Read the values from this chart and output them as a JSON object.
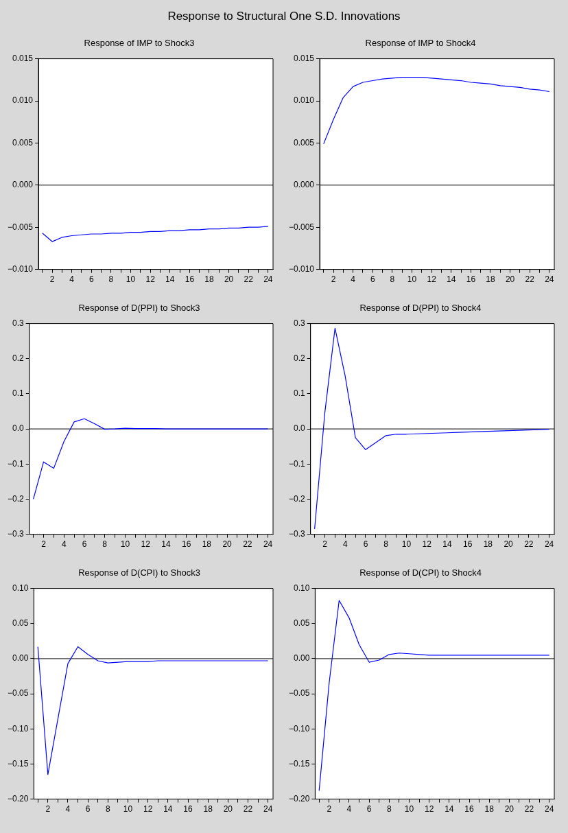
{
  "chart_data": [
    {
      "type": "line",
      "title": "Response of IMP to Shock3",
      "annotations": [
        "Response to Structural One S.D. Innovations"
      ],
      "x": [
        1,
        2,
        3,
        4,
        5,
        6,
        7,
        8,
        9,
        10,
        11,
        12,
        13,
        14,
        15,
        16,
        17,
        18,
        19,
        20,
        21,
        22,
        23,
        24
      ],
      "series": [
        {
          "color": "#0000ff",
          "values": [
            -0.0057,
            -0.0067,
            -0.0062,
            -0.006,
            -0.0059,
            -0.0058,
            -0.0058,
            -0.0057,
            -0.0057,
            -0.0056,
            -0.0056,
            -0.0055,
            -0.0055,
            -0.0054,
            -0.0054,
            -0.0053,
            -0.0053,
            -0.0052,
            -0.0052,
            -0.0051,
            -0.0051,
            -0.005,
            -0.005,
            -0.0049
          ]
        }
      ],
      "xlim": [
        0.6,
        24.5
      ],
      "xticks": [
        {
          "value": 1,
          "label": null
        },
        {
          "value": 2,
          "label": "2"
        },
        {
          "value": 3,
          "label": null
        },
        {
          "value": 4,
          "label": "4"
        },
        {
          "value": 5,
          "label": null
        },
        {
          "value": 6,
          "label": "6"
        },
        {
          "value": 7,
          "label": null
        },
        {
          "value": 8,
          "label": "8"
        },
        {
          "value": 9,
          "label": null
        },
        {
          "value": 10,
          "label": "10"
        },
        {
          "value": 11,
          "label": null
        },
        {
          "value": 12,
          "label": "12"
        },
        {
          "value": 13,
          "label": null
        },
        {
          "value": 14,
          "label": "14"
        },
        {
          "value": 15,
          "label": null
        },
        {
          "value": 16,
          "label": "16"
        },
        {
          "value": 17,
          "label": null
        },
        {
          "value": 18,
          "label": "18"
        },
        {
          "value": 19,
          "label": null
        },
        {
          "value": 20,
          "label": "20"
        },
        {
          "value": 21,
          "label": null
        },
        {
          "value": 22,
          "label": "22"
        },
        {
          "value": 23,
          "label": null
        },
        {
          "value": 24,
          "label": "24"
        }
      ],
      "ylim": [
        -0.01,
        0.015
      ],
      "yticks": [
        {
          "value": -0.01,
          "label": "−0.010"
        },
        {
          "value": -0.005,
          "label": "−0.005"
        },
        {
          "value": 0,
          "label": "0.000"
        },
        {
          "value": 0.005,
          "label": "0.005"
        },
        {
          "value": 0.01,
          "label": "0.010"
        },
        {
          "value": 0.015,
          "label": "0.015"
        }
      ],
      "ref_lines": [
        {
          "axis": "y",
          "value": 0,
          "color": "#000000"
        }
      ]
    },
    {
      "type": "line",
      "title": "Response of IMP to Shock4",
      "x": [
        1,
        2,
        3,
        4,
        5,
        6,
        7,
        8,
        9,
        10,
        11,
        12,
        13,
        14,
        15,
        16,
        17,
        18,
        19,
        20,
        21,
        22,
        23,
        24
      ],
      "series": [
        {
          "color": "#0000ff",
          "values": [
            0.0049,
            0.0078,
            0.0104,
            0.0117,
            0.0122,
            0.0124,
            0.0126,
            0.0127,
            0.0128,
            0.0128,
            0.0128,
            0.0127,
            0.0126,
            0.0125,
            0.0124,
            0.0122,
            0.0121,
            0.012,
            0.0118,
            0.0117,
            0.0116,
            0.0114,
            0.0113,
            0.0111
          ]
        }
      ],
      "xlim": [
        0.6,
        24.5
      ],
      "xticks": [
        {
          "value": 1,
          "label": null
        },
        {
          "value": 2,
          "label": "2"
        },
        {
          "value": 3,
          "label": null
        },
        {
          "value": 4,
          "label": "4"
        },
        {
          "value": 5,
          "label": null
        },
        {
          "value": 6,
          "label": "6"
        },
        {
          "value": 7,
          "label": null
        },
        {
          "value": 8,
          "label": "8"
        },
        {
          "value": 9,
          "label": null
        },
        {
          "value": 10,
          "label": "10"
        },
        {
          "value": 11,
          "label": null
        },
        {
          "value": 12,
          "label": "12"
        },
        {
          "value": 13,
          "label": null
        },
        {
          "value": 14,
          "label": "14"
        },
        {
          "value": 15,
          "label": null
        },
        {
          "value": 16,
          "label": "16"
        },
        {
          "value": 17,
          "label": null
        },
        {
          "value": 18,
          "label": "18"
        },
        {
          "value": 19,
          "label": null
        },
        {
          "value": 20,
          "label": "20"
        },
        {
          "value": 21,
          "label": null
        },
        {
          "value": 22,
          "label": "22"
        },
        {
          "value": 23,
          "label": null
        },
        {
          "value": 24,
          "label": "24"
        }
      ],
      "ylim": [
        -0.01,
        0.015
      ],
      "yticks": [
        {
          "value": -0.01,
          "label": "−0.010"
        },
        {
          "value": -0.005,
          "label": "−0.005"
        },
        {
          "value": 0,
          "label": "0.000"
        },
        {
          "value": 0.005,
          "label": "0.005"
        },
        {
          "value": 0.01,
          "label": "0.010"
        },
        {
          "value": 0.015,
          "label": "0.015"
        }
      ],
      "ref_lines": [
        {
          "axis": "y",
          "value": 0,
          "color": "#000000"
        }
      ]
    },
    {
      "type": "line",
      "title": "Response of D(PPI) to Shock3",
      "x": [
        1,
        2,
        3,
        4,
        5,
        6,
        7,
        8,
        9,
        10,
        11,
        12,
        13,
        14,
        15,
        16,
        17,
        18,
        19,
        20,
        21,
        22,
        23,
        24
      ],
      "series": [
        {
          "color": "#0000ff",
          "values": [
            -0.2,
            -0.094,
            -0.112,
            -0.036,
            0.02,
            0.029,
            0.015,
            -0.001,
            0,
            0.002,
            0.001,
            0.001,
            0.001,
            0,
            0,
            0,
            0,
            0,
            0,
            0,
            0,
            0,
            0,
            0
          ]
        }
      ],
      "xlim": [
        0.6,
        24.5
      ],
      "xticks": [
        {
          "value": 1,
          "label": null
        },
        {
          "value": 2,
          "label": "2"
        },
        {
          "value": 3,
          "label": null
        },
        {
          "value": 4,
          "label": "4"
        },
        {
          "value": 5,
          "label": null
        },
        {
          "value": 6,
          "label": "6"
        },
        {
          "value": 7,
          "label": null
        },
        {
          "value": 8,
          "label": "8"
        },
        {
          "value": 9,
          "label": null
        },
        {
          "value": 10,
          "label": "10"
        },
        {
          "value": 11,
          "label": null
        },
        {
          "value": 12,
          "label": "12"
        },
        {
          "value": 13,
          "label": null
        },
        {
          "value": 14,
          "label": "14"
        },
        {
          "value": 15,
          "label": null
        },
        {
          "value": 16,
          "label": "16"
        },
        {
          "value": 17,
          "label": null
        },
        {
          "value": 18,
          "label": "18"
        },
        {
          "value": 19,
          "label": null
        },
        {
          "value": 20,
          "label": "20"
        },
        {
          "value": 21,
          "label": null
        },
        {
          "value": 22,
          "label": "22"
        },
        {
          "value": 23,
          "label": null
        },
        {
          "value": 24,
          "label": "24"
        }
      ],
      "ylim": [
        -0.3,
        0.3
      ],
      "yticks": [
        {
          "value": -0.3,
          "label": "−0.3"
        },
        {
          "value": -0.2,
          "label": "−0.2"
        },
        {
          "value": -0.1,
          "label": "−0.1"
        },
        {
          "value": 0,
          "label": "0.0"
        },
        {
          "value": 0.1,
          "label": "0.1"
        },
        {
          "value": 0.2,
          "label": "0.2"
        },
        {
          "value": 0.3,
          "label": "0.3"
        }
      ],
      "ref_lines": [
        {
          "axis": "y",
          "value": 0,
          "color": "#000000"
        }
      ]
    },
    {
      "type": "line",
      "title": "Response of D(PPI) to Shock4",
      "x": [
        1,
        2,
        3,
        4,
        5,
        6,
        7,
        8,
        9,
        10,
        11,
        12,
        13,
        14,
        15,
        16,
        17,
        18,
        19,
        20,
        21,
        22,
        23,
        24
      ],
      "series": [
        {
          "color": "#0000ff",
          "values": [
            -0.285,
            0.046,
            0.287,
            0.15,
            -0.025,
            -0.059,
            -0.039,
            -0.019,
            -0.015,
            -0.015,
            -0.014,
            -0.013,
            -0.012,
            -0.011,
            -0.01,
            -0.009,
            -0.008,
            -0.007,
            -0.006,
            -0.005,
            -0.004,
            -0.003,
            -0.002,
            -0.001
          ]
        }
      ],
      "xlim": [
        0.6,
        24.5
      ],
      "xticks": [
        {
          "value": 1,
          "label": null
        },
        {
          "value": 2,
          "label": "2"
        },
        {
          "value": 3,
          "label": null
        },
        {
          "value": 4,
          "label": "4"
        },
        {
          "value": 5,
          "label": null
        },
        {
          "value": 6,
          "label": "6"
        },
        {
          "value": 7,
          "label": null
        },
        {
          "value": 8,
          "label": "8"
        },
        {
          "value": 9,
          "label": null
        },
        {
          "value": 10,
          "label": "10"
        },
        {
          "value": 11,
          "label": null
        },
        {
          "value": 12,
          "label": "12"
        },
        {
          "value": 13,
          "label": null
        },
        {
          "value": 14,
          "label": "14"
        },
        {
          "value": 15,
          "label": null
        },
        {
          "value": 16,
          "label": "16"
        },
        {
          "value": 17,
          "label": null
        },
        {
          "value": 18,
          "label": "18"
        },
        {
          "value": 19,
          "label": null
        },
        {
          "value": 20,
          "label": "20"
        },
        {
          "value": 21,
          "label": null
        },
        {
          "value": 22,
          "label": "22"
        },
        {
          "value": 23,
          "label": null
        },
        {
          "value": 24,
          "label": "24"
        }
      ],
      "ylim": [
        -0.3,
        0.3
      ],
      "yticks": [
        {
          "value": -0.3,
          "label": "−0.3"
        },
        {
          "value": -0.2,
          "label": "−0.2"
        },
        {
          "value": -0.1,
          "label": "−0.1"
        },
        {
          "value": 0,
          "label": "0.0"
        },
        {
          "value": 0.1,
          "label": "0.1"
        },
        {
          "value": 0.2,
          "label": "0.2"
        },
        {
          "value": 0.3,
          "label": "0.3"
        }
      ],
      "ref_lines": [
        {
          "axis": "y",
          "value": 0,
          "color": "#000000"
        }
      ]
    },
    {
      "type": "line",
      "title": "Response of D(CPI) to Shock3",
      "x": [
        1,
        2,
        3,
        4,
        5,
        6,
        7,
        8,
        9,
        10,
        11,
        12,
        13,
        14,
        15,
        16,
        17,
        18,
        19,
        20,
        21,
        22,
        23,
        24
      ],
      "series": [
        {
          "color": "#0000ff",
          "values": [
            0.017,
            -0.165,
            -0.086,
            -0.007,
            0.017,
            0.006,
            -0.003,
            -0.006,
            -0.005,
            -0.004,
            -0.004,
            -0.004,
            -0.003,
            -0.003,
            -0.003,
            -0.003,
            -0.003,
            -0.003,
            -0.003,
            -0.003,
            -0.003,
            -0.003,
            -0.003,
            -0.003
          ]
        }
      ],
      "xlim": [
        0.6,
        24.5
      ],
      "xticks": [
        {
          "value": 1,
          "label": null
        },
        {
          "value": 2,
          "label": "2"
        },
        {
          "value": 3,
          "label": null
        },
        {
          "value": 4,
          "label": "4"
        },
        {
          "value": 5,
          "label": null
        },
        {
          "value": 6,
          "label": "6"
        },
        {
          "value": 7,
          "label": null
        },
        {
          "value": 8,
          "label": "8"
        },
        {
          "value": 9,
          "label": null
        },
        {
          "value": 10,
          "label": "10"
        },
        {
          "value": 11,
          "label": null
        },
        {
          "value": 12,
          "label": "12"
        },
        {
          "value": 13,
          "label": null
        },
        {
          "value": 14,
          "label": "14"
        },
        {
          "value": 15,
          "label": null
        },
        {
          "value": 16,
          "label": "16"
        },
        {
          "value": 17,
          "label": null
        },
        {
          "value": 18,
          "label": "18"
        },
        {
          "value": 19,
          "label": null
        },
        {
          "value": 20,
          "label": "20"
        },
        {
          "value": 21,
          "label": null
        },
        {
          "value": 22,
          "label": "22"
        },
        {
          "value": 23,
          "label": null
        },
        {
          "value": 24,
          "label": "24"
        }
      ],
      "ylim": [
        -0.2,
        0.1
      ],
      "yticks": [
        {
          "value": -0.2,
          "label": "−0.20"
        },
        {
          "value": -0.15,
          "label": "−0.15"
        },
        {
          "value": -0.1,
          "label": "−0.10"
        },
        {
          "value": -0.05,
          "label": "−0.05"
        },
        {
          "value": 0,
          "label": "0.00"
        },
        {
          "value": 0.05,
          "label": "0.05"
        },
        {
          "value": 0.1,
          "label": "0.10"
        }
      ],
      "ref_lines": [
        {
          "axis": "y",
          "value": 0,
          "color": "#000000"
        }
      ]
    },
    {
      "type": "line",
      "title": "Response of D(CPI) to Shock4",
      "x": [
        1,
        2,
        3,
        4,
        5,
        6,
        7,
        8,
        9,
        10,
        11,
        12,
        13,
        14,
        15,
        16,
        17,
        18,
        19,
        20,
        21,
        22,
        23,
        24
      ],
      "series": [
        {
          "color": "#0000ff",
          "values": [
            -0.188,
            -0.035,
            0.083,
            0.058,
            0.02,
            -0.005,
            -0.002,
            0.006,
            0.008,
            0.007,
            0.006,
            0.005,
            0.005,
            0.005,
            0.005,
            0.005,
            0.005,
            0.005,
            0.005,
            0.005,
            0.005,
            0.005,
            0.005,
            0.005
          ]
        }
      ],
      "xlim": [
        0.6,
        24.5
      ],
      "xticks": [
        {
          "value": 1,
          "label": null
        },
        {
          "value": 2,
          "label": "2"
        },
        {
          "value": 3,
          "label": null
        },
        {
          "value": 4,
          "label": "4"
        },
        {
          "value": 5,
          "label": null
        },
        {
          "value": 6,
          "label": "6"
        },
        {
          "value": 7,
          "label": null
        },
        {
          "value": 8,
          "label": "8"
        },
        {
          "value": 9,
          "label": null
        },
        {
          "value": 10,
          "label": "10"
        },
        {
          "value": 11,
          "label": null
        },
        {
          "value": 12,
          "label": "12"
        },
        {
          "value": 13,
          "label": null
        },
        {
          "value": 14,
          "label": "14"
        },
        {
          "value": 15,
          "label": null
        },
        {
          "value": 16,
          "label": "16"
        },
        {
          "value": 17,
          "label": null
        },
        {
          "value": 18,
          "label": "18"
        },
        {
          "value": 19,
          "label": null
        },
        {
          "value": 20,
          "label": "20"
        },
        {
          "value": 21,
          "label": null
        },
        {
          "value": 22,
          "label": "22"
        },
        {
          "value": 23,
          "label": null
        },
        {
          "value": 24,
          "label": "24"
        }
      ],
      "ylim": [
        -0.2,
        0.1
      ],
      "yticks": [
        {
          "value": -0.2,
          "label": "−0.20"
        },
        {
          "value": -0.15,
          "label": "−0.15"
        },
        {
          "value": -0.1,
          "label": "−0.10"
        },
        {
          "value": -0.05,
          "label": "−0.05"
        },
        {
          "value": 0,
          "label": "0.00"
        },
        {
          "value": 0.05,
          "label": "0.05"
        },
        {
          "value": 0.1,
          "label": "0.10"
        }
      ],
      "ref_lines": [
        {
          "axis": "y",
          "value": 0,
          "color": "#000000"
        }
      ]
    }
  ]
}
